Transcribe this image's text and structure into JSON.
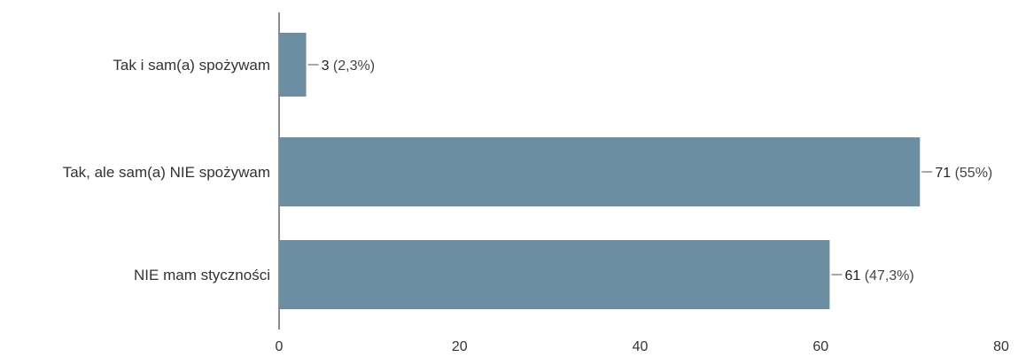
{
  "chart_data": {
    "type": "bar",
    "orientation": "horizontal",
    "title": "",
    "xlabel": "",
    "ylabel": "",
    "categories": [
      "Tak i sam(a) spożywam",
      "Tak, ale sam(a) NIE spożywam",
      "NIE mam styczności"
    ],
    "values": [
      3,
      71,
      61
    ],
    "value_labels": [
      "3",
      "71",
      "61"
    ],
    "percent_labels": [
      "(2,3%)",
      "(55%)",
      "(47,3%)"
    ],
    "xlim": [
      0,
      80
    ],
    "x_ticks": [
      "0",
      "20",
      "40",
      "60",
      "80"
    ],
    "grid": false,
    "legend": "none",
    "colors": {
      "bar": "#6b8ea3",
      "axis": "#666666",
      "text": "#333333"
    }
  }
}
